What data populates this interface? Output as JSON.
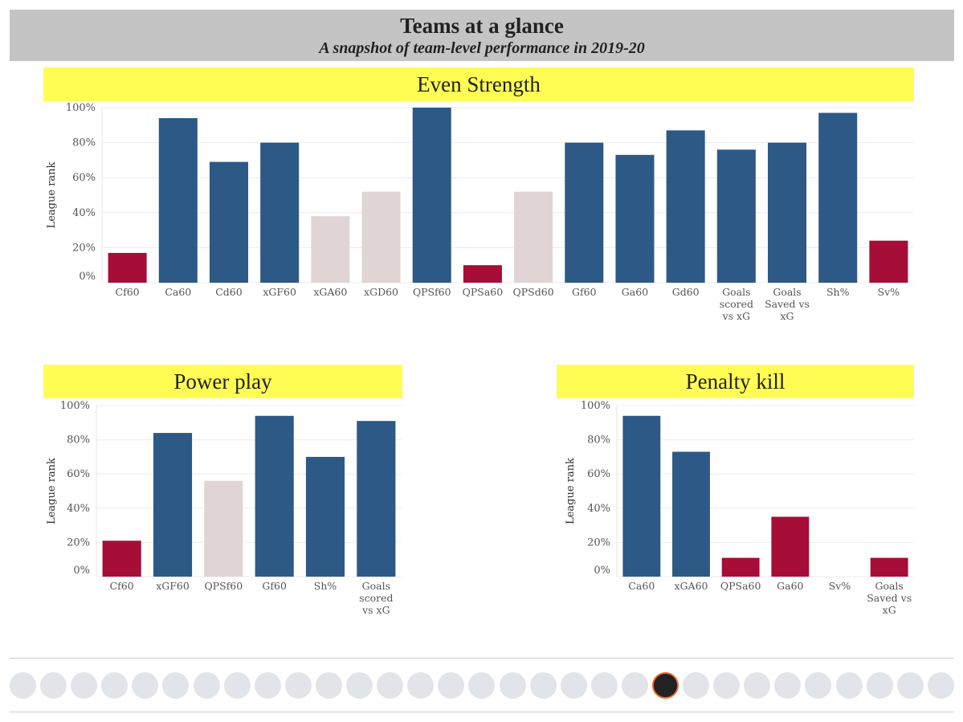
{
  "header": {
    "title": "Teams at a glance",
    "subtitle": "A snapshot of team-level performance in 2019-20"
  },
  "colors": {
    "high": "#2d5986",
    "mid": "#e0d5d4",
    "low": "#a60d37"
  },
  "footer": {
    "logos": [
      "ducks-logo",
      "coyotes-logo",
      "bruins-logo",
      "sabres-logo",
      "hurricanes-logo",
      "blue-jackets-logo",
      "flames-logo",
      "blackhawks-logo",
      "avalanche-logo",
      "stars-logo",
      "red-wings-logo",
      "oilers-logo",
      "panthers-logo",
      "kings-logo",
      "wild-logo",
      "canadiens-logo",
      "devils-logo",
      "predators-logo",
      "islanders-logo",
      "rangers-logo",
      "senators-logo",
      "flyers-logo",
      "penguins-logo",
      "sharks-logo",
      "blues-logo",
      "lightning-logo",
      "maple-leafs-logo",
      "canucks-logo",
      "golden-knights-logo",
      "jets-logo",
      "capitals-logo"
    ],
    "active_logo": "flyers-logo"
  },
  "chart_data": [
    {
      "type": "bar",
      "title": "Even Strength",
      "ylabel": "League rank",
      "ylim": [
        0,
        100
      ],
      "yticks": [
        "0%",
        "20%",
        "40%",
        "60%",
        "80%",
        "100%"
      ],
      "categories": [
        "Cf60",
        "Ca60",
        "Cd60",
        "xGF60",
        "xGA60",
        "xGD60",
        "QPSf60",
        "QPSa60",
        "QPSd60",
        "Gf60",
        "Ga60",
        "Gd60",
        "Goals scored vs xG",
        "Goals Saved vs xG",
        "Sh%",
        "Sv%"
      ],
      "values": [
        17,
        94,
        69,
        80,
        38,
        52,
        100,
        10,
        52,
        80,
        73,
        87,
        76,
        80,
        97,
        24
      ],
      "level": [
        "low",
        "high",
        "high",
        "high",
        "mid",
        "mid",
        "high",
        "low",
        "mid",
        "high",
        "high",
        "high",
        "high",
        "high",
        "high",
        "low"
      ],
      "grid": true
    },
    {
      "type": "bar",
      "title": "Power play",
      "ylabel": "League rank",
      "ylim": [
        0,
        100
      ],
      "yticks": [
        "0%",
        "20%",
        "40%",
        "60%",
        "80%",
        "100%"
      ],
      "categories": [
        "Cf60",
        "xGF60",
        "QPSf60",
        "Gf60",
        "Sh%",
        "Goals scored vs xG"
      ],
      "values": [
        21,
        84,
        56,
        94,
        70,
        91
      ],
      "level": [
        "low",
        "high",
        "mid",
        "high",
        "high",
        "high"
      ],
      "grid": true
    },
    {
      "type": "bar",
      "title": "Penalty kill",
      "ylabel": "League rank",
      "ylim": [
        0,
        100
      ],
      "yticks": [
        "0%",
        "20%",
        "40%",
        "60%",
        "80%",
        "100%"
      ],
      "categories": [
        "Ca60",
        "xGA60",
        "QPSa60",
        "Ga60",
        "Sv%",
        "Goals Saved vs xG"
      ],
      "values": [
        94,
        73,
        11,
        35,
        0,
        11
      ],
      "level": [
        "high",
        "high",
        "low",
        "low",
        "high",
        "low"
      ],
      "grid": true
    }
  ]
}
